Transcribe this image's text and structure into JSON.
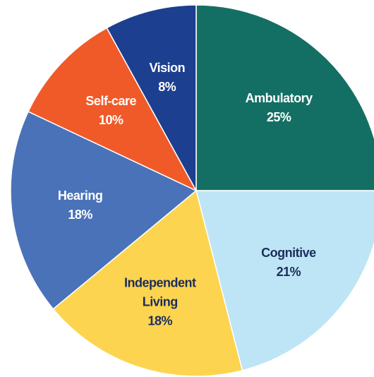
{
  "chart_data": {
    "type": "pie",
    "categories": [
      "Ambulatory",
      "Cognitive",
      "Independent Living",
      "Hearing",
      "Self-care",
      "Vision"
    ],
    "values": [
      25,
      21,
      18,
      18,
      10,
      8
    ],
    "value_labels": [
      "25%",
      "21%",
      "18%",
      "18%",
      "10%",
      "8%"
    ],
    "colors": [
      "#136f63",
      "#bee5f5",
      "#fdd44f",
      "#4a72b8",
      "#f05a28",
      "#1c3f8f"
    ],
    "label_colors": [
      "#ffffff",
      "#1b2d5c",
      "#1b2d5c",
      "#ffffff",
      "#ffffff",
      "#ffffff"
    ]
  }
}
